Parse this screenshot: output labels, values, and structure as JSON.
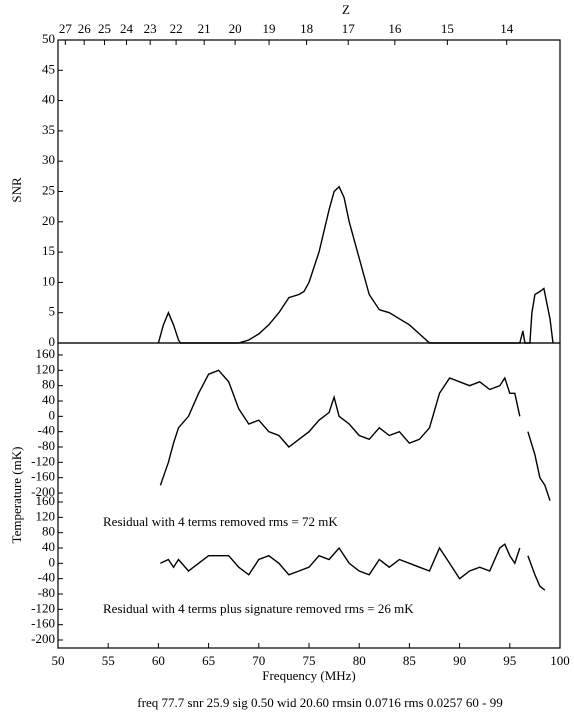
{
  "chart_data": [
    {
      "type": "line",
      "ylabel": "SNR",
      "x2label": "Z",
      "xlim": [
        50,
        100
      ],
      "ylim": [
        0,
        50
      ],
      "yticks": [
        0,
        5,
        10,
        15,
        20,
        25,
        30,
        35,
        40,
        45,
        50
      ],
      "x2ticks": [
        {
          "value": 50.73,
          "label": "27"
        },
        {
          "value": 52.61,
          "label": "26"
        },
        {
          "value": 54.63,
          "label": "25"
        },
        {
          "value": 56.82,
          "label": "24"
        },
        {
          "value": 59.18,
          "label": "23"
        },
        {
          "value": 61.76,
          "label": "22"
        },
        {
          "value": 64.56,
          "label": "21"
        },
        {
          "value": 67.64,
          "label": "20"
        },
        {
          "value": 71.02,
          "label": "19"
        },
        {
          "value": 74.76,
          "label": "18"
        },
        {
          "value": 78.91,
          "label": "17"
        },
        {
          "value": 83.55,
          "label": "16"
        },
        {
          "value": 88.78,
          "label": "15"
        },
        {
          "value": 94.69,
          "label": "14"
        }
      ],
      "color": "#000000",
      "x": [
        60,
        60.5,
        61,
        61.5,
        62,
        62.2,
        68,
        69,
        70,
        71,
        72,
        73,
        74,
        74.5,
        75,
        76,
        77,
        77.5,
        78,
        78.5,
        79,
        80,
        81,
        82,
        83,
        84,
        85,
        86,
        87,
        96,
        96.3,
        96.5,
        97,
        97.2,
        97.5,
        98,
        98.4,
        99,
        99.3
      ],
      "values": [
        0,
        3,
        5,
        3,
        0.5,
        0,
        0,
        0.5,
        1.5,
        3,
        5,
        7.5,
        8,
        8.5,
        10,
        15,
        22,
        25,
        25.8,
        24,
        20,
        14,
        8,
        5.5,
        5,
        4,
        3,
        1.5,
        0,
        0,
        2,
        0,
        0,
        5,
        8,
        8.5,
        9,
        4,
        0
      ]
    },
    {
      "type": "line",
      "ylabel": "Temperature (mK)",
      "annotation": "Residual with 4 terms removed rms =  72 mK",
      "xlim": [
        50,
        100
      ],
      "ylim": [
        -200,
        160
      ],
      "yticks": [
        160,
        120,
        80,
        40,
        0,
        -40,
        -80,
        -120,
        -160,
        -200
      ],
      "color": "#000000",
      "x": [
        60.2,
        61,
        61.5,
        62,
        63,
        64,
        65,
        66,
        67,
        68,
        69,
        70,
        71,
        72,
        73,
        74,
        75,
        76,
        77,
        77.5,
        78,
        79,
        80,
        81,
        82,
        83,
        84,
        85,
        86,
        87,
        88,
        89,
        90,
        91,
        92,
        93,
        94,
        94.5,
        95,
        95.5,
        96,
        96.4,
        96.8,
        97.5,
        98,
        98.5,
        99
      ],
      "values": [
        -180,
        -120,
        -70,
        -30,
        0,
        60,
        110,
        120,
        90,
        20,
        -20,
        -10,
        -40,
        -50,
        -80,
        -60,
        -40,
        -10,
        10,
        50,
        0,
        -20,
        -50,
        -60,
        -30,
        -50,
        -40,
        -70,
        -60,
        -30,
        60,
        100,
        90,
        80,
        90,
        70,
        80,
        100,
        60,
        60,
        0,
        null,
        -40,
        -100,
        -160,
        -180,
        -220
      ]
    },
    {
      "type": "line",
      "annotation": "Residual with 4 terms plus signature removed rms =  26 mK",
      "xlabel": "Frequency (MHz)",
      "caption": "freq 77.7 snr 25.9 sig 0.50 wid 20.60 rmsin 0.0716 rms 0.0257 60 - 99",
      "xlim": [
        50,
        100
      ],
      "ylim": [
        -200,
        160
      ],
      "xticks": [
        50,
        55,
        60,
        65,
        70,
        75,
        80,
        85,
        90,
        95,
        100
      ],
      "yticks": [
        160,
        120,
        80,
        40,
        0,
        -40,
        -80,
        -120,
        -160,
        -200
      ],
      "color": "#000000",
      "x": [
        60.2,
        61,
        61.5,
        62,
        63,
        64,
        65,
        66,
        67,
        68,
        69,
        70,
        71,
        72,
        73,
        74,
        75,
        76,
        77,
        78,
        79,
        80,
        81,
        82,
        83,
        84,
        85,
        86,
        87,
        88,
        89,
        90,
        91,
        92,
        93,
        94,
        94.5,
        95,
        95.5,
        96,
        96.4,
        96.8,
        97.5,
        98,
        98.5
      ],
      "values": [
        0,
        10,
        -10,
        10,
        -20,
        0,
        20,
        20,
        20,
        -10,
        -30,
        10,
        20,
        0,
        -30,
        -20,
        -10,
        20,
        10,
        40,
        0,
        -20,
        -30,
        10,
        -10,
        10,
        0,
        -10,
        -20,
        40,
        0,
        -40,
        -20,
        -10,
        -20,
        40,
        50,
        20,
        0,
        40,
        null,
        20,
        -30,
        -60,
        -70
      ]
    }
  ]
}
